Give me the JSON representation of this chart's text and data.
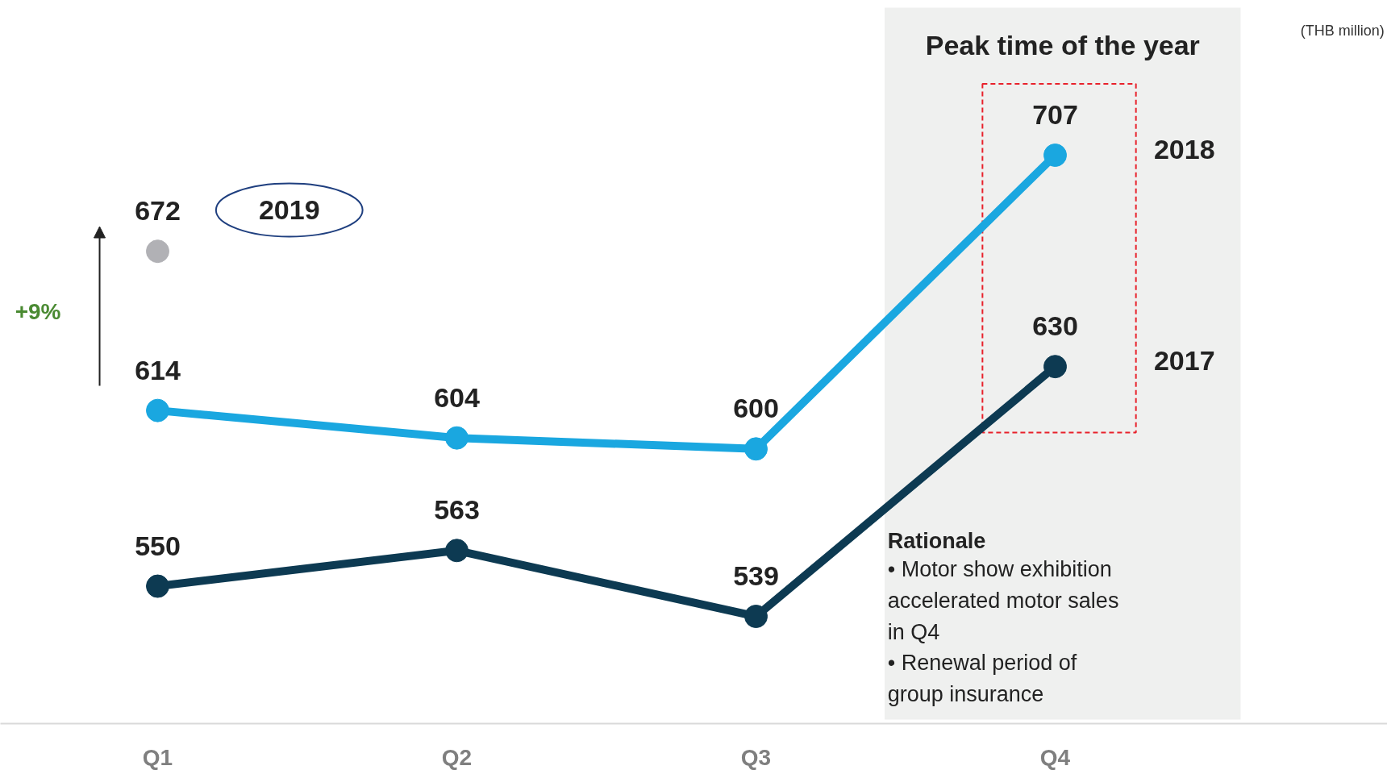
{
  "chart_data": {
    "type": "line",
    "categories": [
      "Q1",
      "Q2",
      "Q3",
      "Q4"
    ],
    "series": [
      {
        "name": "2018",
        "color": "#1aa7e0",
        "values": [
          614,
          604,
          600,
          707
        ]
      },
      {
        "name": "2017",
        "color": "#0d3a52",
        "values": [
          550,
          563,
          539,
          630
        ]
      },
      {
        "name": "2019",
        "color": "#b1b1b5",
        "values": [
          672,
          null,
          null,
          null
        ]
      }
    ],
    "data_labels": true,
    "marker": "circle",
    "line_style": "solid",
    "grid": false,
    "bands": [
      {
        "axis": "x",
        "from": "Q4",
        "to": "Q4",
        "label": "Peak time of the year",
        "color": "#eff0ef"
      }
    ],
    "annotations": [
      "+9%",
      "(THB million)",
      "Rationale",
      "• Motor show exhibition accelerated motor sales in Q4",
      "• Renewal period of group insurance"
    ]
  }
}
